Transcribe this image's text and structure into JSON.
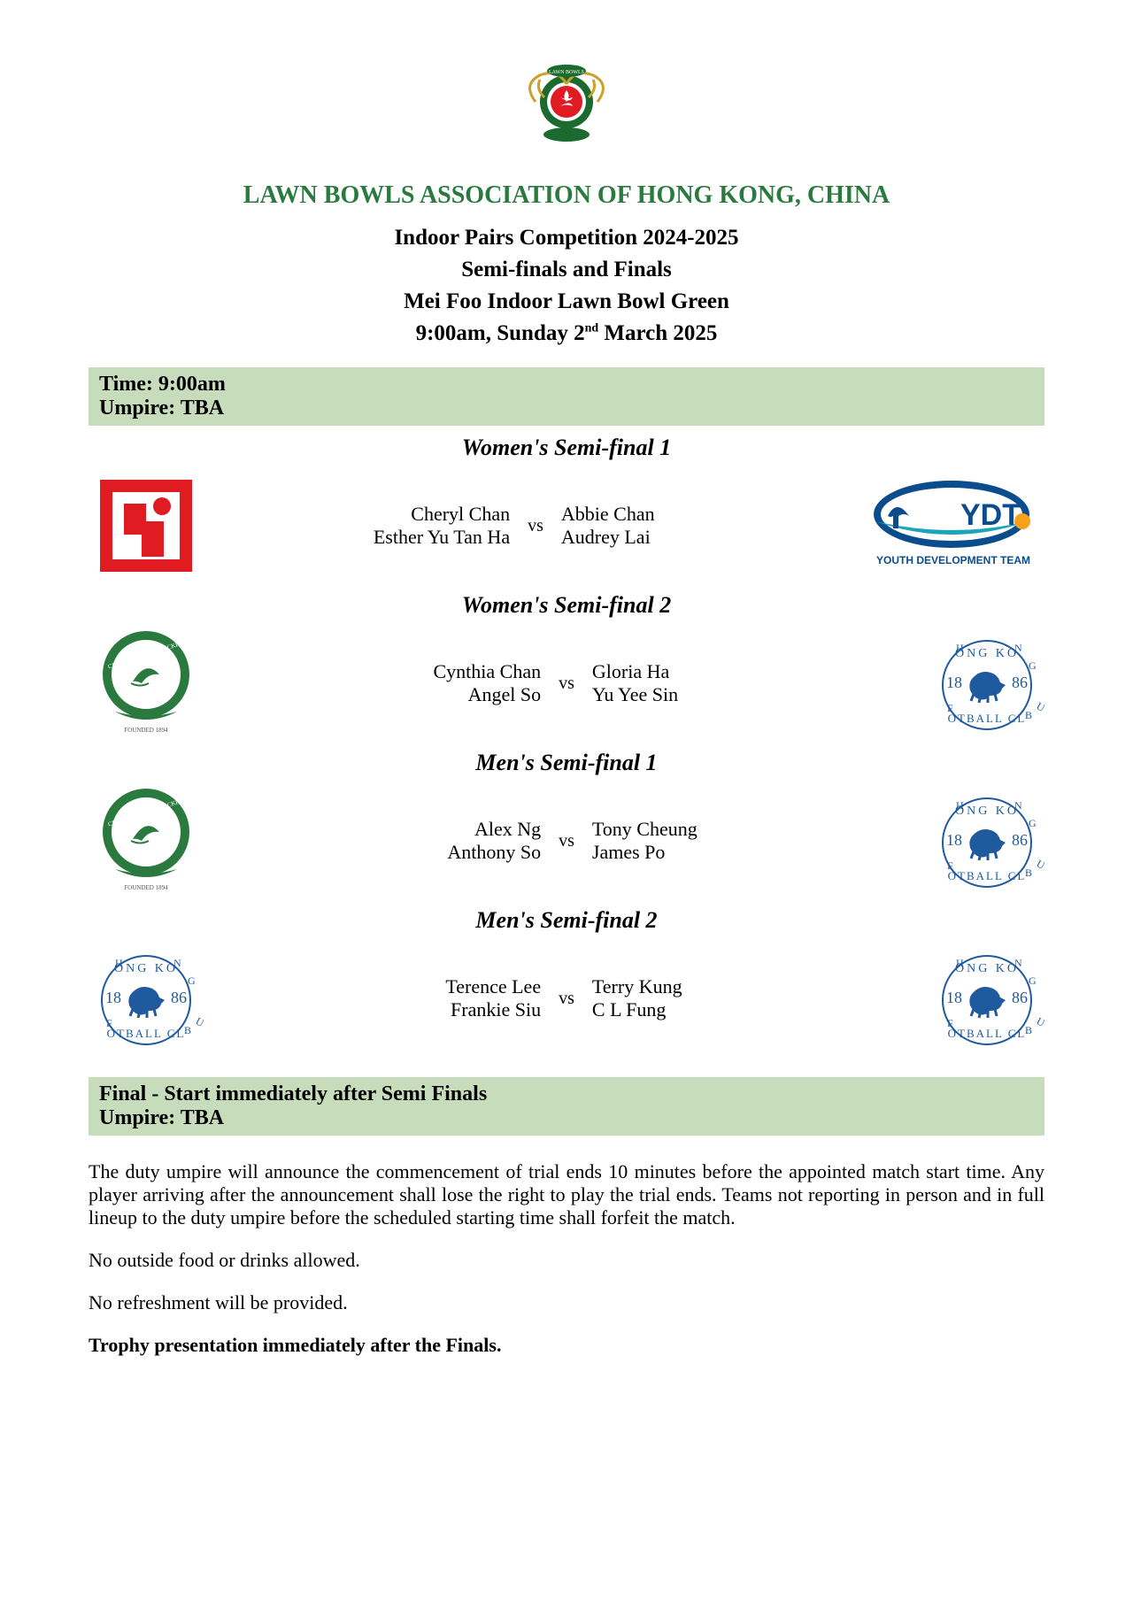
{
  "header": {
    "org_title": "LAWN BOWLS ASSOCIATION OF HONG KONG, CHINA",
    "line1": "Indoor Pairs Competition 2024-2025",
    "line2": "Semi-finals and Finals",
    "line3": "Mei Foo Indoor Lawn Bowl Green",
    "line4_pre": "9:00am, Sunday 2",
    "line4_sup": "nd",
    "line4_post": " March 2025"
  },
  "bar1": {
    "time_label": "Time: 9:00am",
    "umpire_label": "Umpire: TBA"
  },
  "matches": [
    {
      "title": "Women's Semi-final 1",
      "left_logo": "red",
      "right_logo": "ydt",
      "team1": [
        "Cheryl Chan",
        "Esther Yu Tan Ha"
      ],
      "team2": [
        "Abbie Chan",
        "Audrey Lai"
      ],
      "vs": "vs"
    },
    {
      "title": "Women's Semi-final 2",
      "left_logo": "ccc",
      "right_logo": "hkfc",
      "team1": [
        "Cynthia Chan",
        "Angel So"
      ],
      "team2": [
        "Gloria Ha",
        "Yu Yee Sin"
      ],
      "vs": "vs"
    },
    {
      "title": "Men's Semi-final 1",
      "left_logo": "ccc",
      "right_logo": "hkfc",
      "team1": [
        "Alex Ng",
        "Anthony So"
      ],
      "team2": [
        "Tony Cheung",
        "James Po"
      ],
      "vs": "vs"
    },
    {
      "title": "Men's Semi-final 2",
      "left_logo": "hkfc",
      "right_logo": "hkfc",
      "team1": [
        "Terence Lee",
        "Frankie Siu"
      ],
      "team2": [
        "Terry Kung",
        "C L Fung"
      ],
      "vs": "vs"
    }
  ],
  "bar2": {
    "line1": "Final - Start immediately after Semi Finals",
    "line2": "Umpire: TBA"
  },
  "notes": {
    "p1": "The duty umpire will announce the commencement of trial ends 10 minutes before the appointed match start time. Any player arriving after the announcement shall lose the right to play the trial ends. Teams not reporting in person and in full lineup to the duty umpire before the scheduled starting time shall forfeit the match.",
    "p2": "No outside food or drinks allowed.",
    "p3": "No refreshment will be provided.",
    "p4": "Trophy presentation immediately after the Finals."
  },
  "colors": {
    "green_title": "#2a7a3f",
    "green_bar": "#c6dcbb",
    "hkfc_blue": "#1f5a9e",
    "ccc_green": "#2a7a3f",
    "red": "#e11b22",
    "ydt_blue": "#0b4c8c",
    "ydt_teal": "#1aa5b8",
    "ydt_orange": "#f7a11b"
  }
}
